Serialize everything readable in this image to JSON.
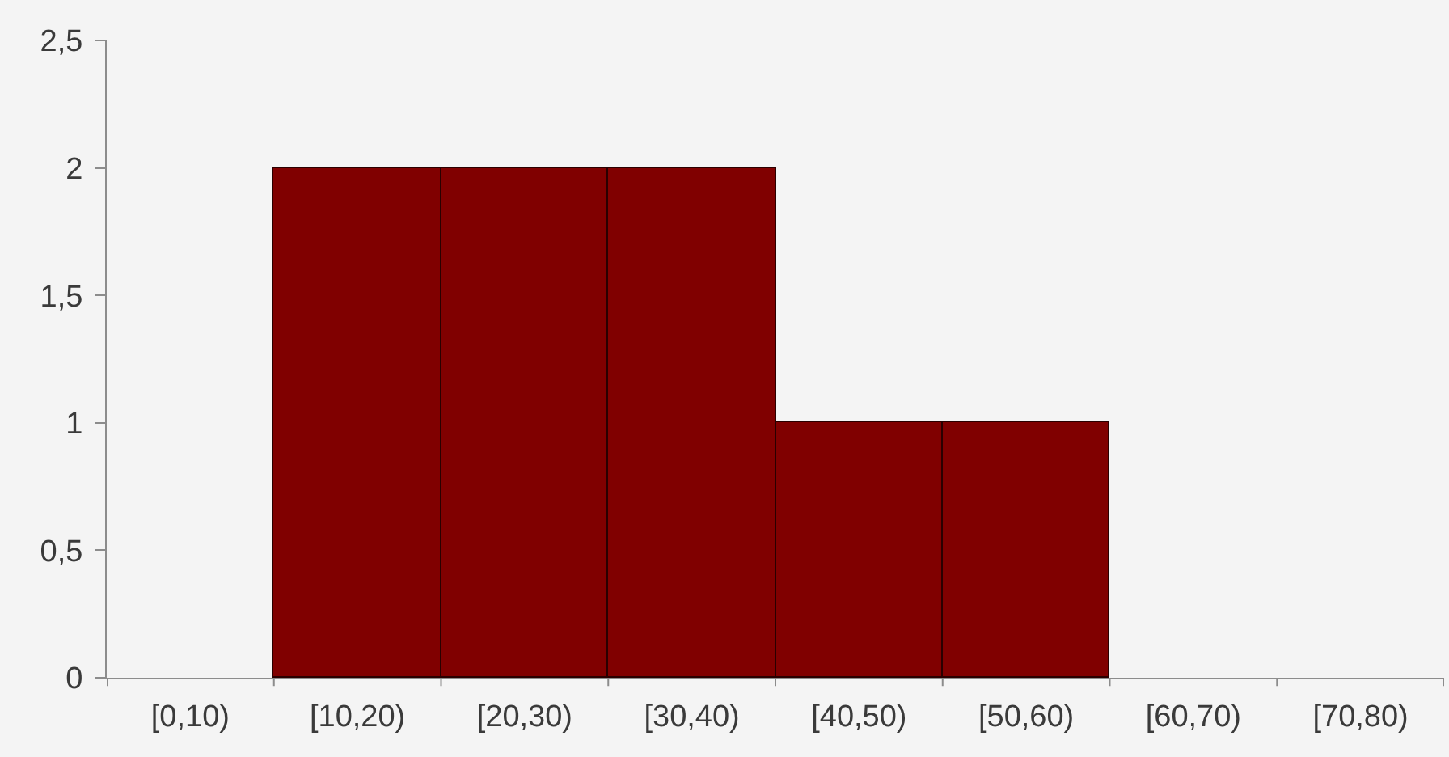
{
  "chart_data": {
    "type": "bar",
    "categories": [
      "[0,10)",
      "[10,20)",
      "[20,30)",
      "[30,40)",
      "[40,50)",
      "[50,60)",
      "[60,70)",
      "[70,80)"
    ],
    "values": [
      0,
      2,
      2,
      2,
      1,
      1,
      0,
      0
    ],
    "color": "#800000",
    "ylim": [
      0,
      2.5
    ],
    "yticks": [
      0,
      {
        "value": 0.5,
        "label": "0,5"
      },
      1,
      {
        "value": 1.5,
        "label": "1,5"
      },
      2,
      {
        "value": 2.5,
        "label": "2,5"
      }
    ]
  }
}
